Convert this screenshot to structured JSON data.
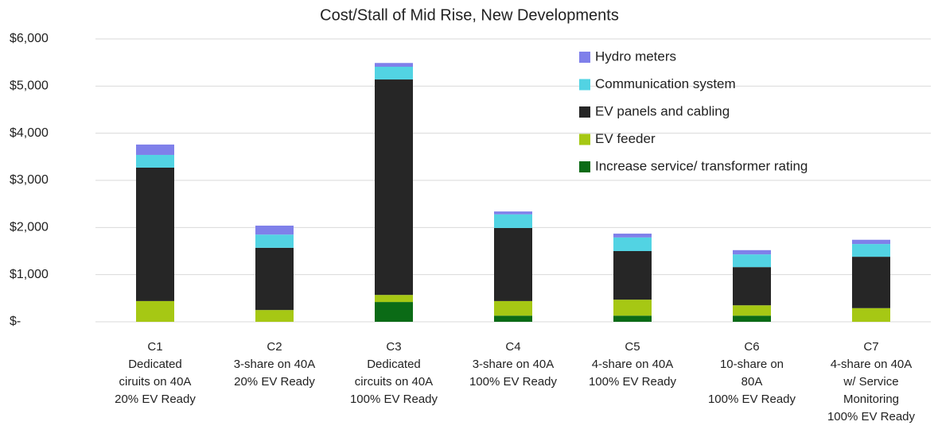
{
  "chart_data": {
    "type": "stacked_bar",
    "title": "Cost/Stall of Mid Rise, New Developments",
    "categories": [
      [
        "C1",
        "Dedicated",
        "ciruits on 40A",
        "20% EV Ready"
      ],
      [
        "C2",
        "3-share on 40A",
        "20% EV Ready"
      ],
      [
        "C3",
        "Dedicated",
        "circuits on 40A",
        "100% EV Ready"
      ],
      [
        "C4",
        "3-share on 40A",
        "100% EV Ready"
      ],
      [
        "C5",
        "4-share on 40A",
        "100% EV Ready"
      ],
      [
        "C6",
        "10-share on",
        "80A",
        "100% EV Ready"
      ],
      [
        "C7",
        "4-share on 40A",
        "w/ Service",
        "Monitoring",
        "100% EV Ready"
      ]
    ],
    "series": [
      {
        "name": "Increase service/ transformer rating",
        "color": "#0b6b16",
        "values": [
          0,
          0,
          420,
          130,
          130,
          130,
          0
        ]
      },
      {
        "name": "EV feeder",
        "color": "#a6c814",
        "values": [
          440,
          250,
          150,
          310,
          340,
          220,
          290
        ]
      },
      {
        "name": "EV panels and cabling",
        "color": "#262626",
        "values": [
          2830,
          1320,
          4570,
          1550,
          1030,
          810,
          1090
        ]
      },
      {
        "name": "Communication system",
        "color": "#52d3e3",
        "values": [
          270,
          280,
          270,
          290,
          290,
          270,
          270
        ]
      },
      {
        "name": "Hydro meters",
        "color": "#7f80ea",
        "values": [
          220,
          190,
          80,
          60,
          80,
          90,
          90
        ]
      }
    ],
    "ylim": [
      0,
      6000
    ],
    "yticks": [
      {
        "value": 0,
        "label": "$-"
      },
      {
        "value": 1000,
        "label": "$1,000"
      },
      {
        "value": 2000,
        "label": "$2,000"
      },
      {
        "value": 3000,
        "label": "$3,000"
      },
      {
        "value": 4000,
        "label": "$4,000"
      },
      {
        "value": 5000,
        "label": "$5,000"
      },
      {
        "value": 6000,
        "label": "$6,000"
      }
    ],
    "grid": true,
    "legend": "upper right"
  }
}
